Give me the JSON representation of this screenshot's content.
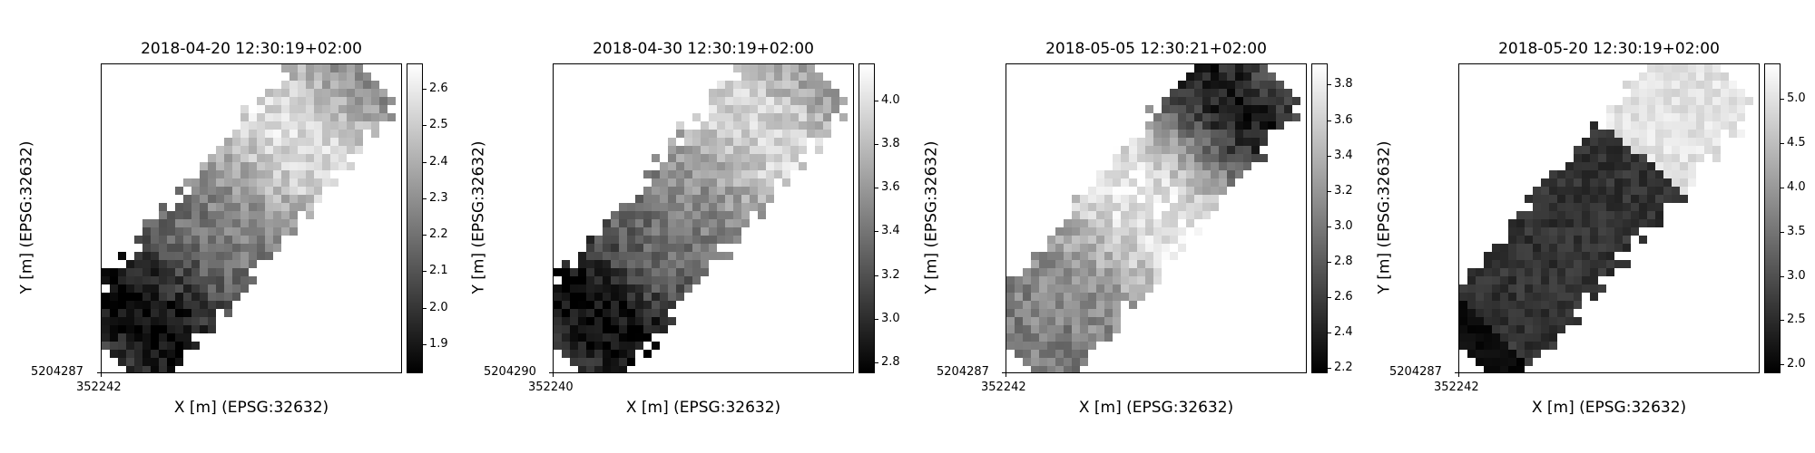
{
  "figure": {
    "colormap": "gray",
    "panels": [
      {
        "title": "2018-04-20 12:30:19+02:00",
        "xlabel": "X [m] (EPSG:32632)",
        "ylabel": "Y [m] (EPSG:32632)",
        "xtick": "352242",
        "ytick": "5204287",
        "colorbar": {
          "vmin": 1.82,
          "vmax": 2.67,
          "ticks": [
            "1.9",
            "2.0",
            "2.1",
            "2.2",
            "2.3",
            "2.4",
            "2.5",
            "2.6"
          ]
        }
      },
      {
        "title": "2018-04-30 12:30:19+02:00",
        "xlabel": "X [m] (EPSG:32632)",
        "ylabel": "Y [m] (EPSG:32632)",
        "xtick": "352240",
        "ytick": "5204290",
        "colorbar": {
          "vmin": 2.75,
          "vmax": 4.17,
          "ticks": [
            "2.8",
            "3.0",
            "3.2",
            "3.4",
            "3.6",
            "3.8",
            "4.0"
          ]
        }
      },
      {
        "title": "2018-05-05 12:30:21+02:00",
        "xlabel": "X [m] (EPSG:32632)",
        "ylabel": "Y [m] (EPSG:32632)",
        "xtick": "352242",
        "ytick": "5204287",
        "colorbar": {
          "vmin": 2.17,
          "vmax": 3.92,
          "ticks": [
            "2.2",
            "2.4",
            "2.6",
            "2.8",
            "3.0",
            "3.2",
            "3.4",
            "3.6",
            "3.8"
          ]
        }
      },
      {
        "title": "2018-05-20 12:30:19+02:00",
        "xlabel": "X [m] (EPSG:32632)",
        "ylabel": "Y [m] (EPSG:32632)",
        "xtick": "352242",
        "ytick": "5204287",
        "colorbar": {
          "vmin": 1.9,
          "vmax": 5.4,
          "ticks": [
            "2.0",
            "2.5",
            "3.0",
            "3.5",
            "4.0",
            "4.5",
            "5.0"
          ]
        }
      }
    ]
  },
  "chart_data": [
    {
      "type": "heatmap",
      "title": "2018-04-20 12:30:19+02:00",
      "xlabel": "X [m] (EPSG:32632)",
      "ylabel": "Y [m] (EPSG:32632)",
      "x_ticks": [
        "352242"
      ],
      "y_ticks": [
        "5204287"
      ],
      "colorbar_range": [
        1.82,
        2.67
      ],
      "colorbar_ticks": [
        1.9,
        2.0,
        2.1,
        2.2,
        2.3,
        2.4,
        2.5,
        2.6
      ],
      "colormap": "gray",
      "pattern": {
        "low_value": 1.85,
        "high_value": 2.55,
        "low_position": 0.12,
        "high_position": 0.78
      }
    },
    {
      "type": "heatmap",
      "title": "2018-04-30 12:30:19+02:00",
      "xlabel": "X [m] (EPSG:32632)",
      "ylabel": "Y [m] (EPSG:32632)",
      "x_ticks": [
        "352240"
      ],
      "y_ticks": [
        "5204290"
      ],
      "colorbar_range": [
        2.75,
        4.17
      ],
      "colorbar_ticks": [
        2.8,
        3.0,
        3.2,
        3.4,
        3.6,
        3.8,
        4.0
      ],
      "colormap": "gray",
      "pattern": {
        "low_value": 2.8,
        "high_value": 3.95,
        "low_position": 0.12,
        "high_position": 0.82
      }
    },
    {
      "type": "heatmap",
      "title": "2018-05-05 12:30:21+02:00",
      "xlabel": "X [m] (EPSG:32632)",
      "ylabel": "Y [m] (EPSG:32632)",
      "x_ticks": [
        "352242"
      ],
      "y_ticks": [
        "5204287"
      ],
      "colorbar_range": [
        2.17,
        3.92
      ],
      "colorbar_ticks": [
        2.2,
        2.4,
        2.6,
        2.8,
        3.0,
        3.2,
        3.4,
        3.6,
        3.8
      ],
      "colormap": "gray",
      "pattern": {
        "low_value": 2.3,
        "high_value": 3.8,
        "low_position": 0.9,
        "high_position": 0.55
      }
    },
    {
      "type": "heatmap",
      "title": "2018-05-20 12:30:19+02:00",
      "xlabel": "X [m] (EPSG:32632)",
      "ylabel": "Y [m] (EPSG:32632)",
      "x_ticks": [
        "352242"
      ],
      "y_ticks": [
        "5204287"
      ],
      "colorbar_range": [
        1.9,
        5.4
      ],
      "colorbar_ticks": [
        2.0,
        2.5,
        3.0,
        3.5,
        4.0,
        4.5,
        5.0
      ],
      "colormap": "gray",
      "pattern": {
        "low_value": 2.6,
        "high_value": 5.0,
        "split_position": 0.72
      }
    }
  ]
}
